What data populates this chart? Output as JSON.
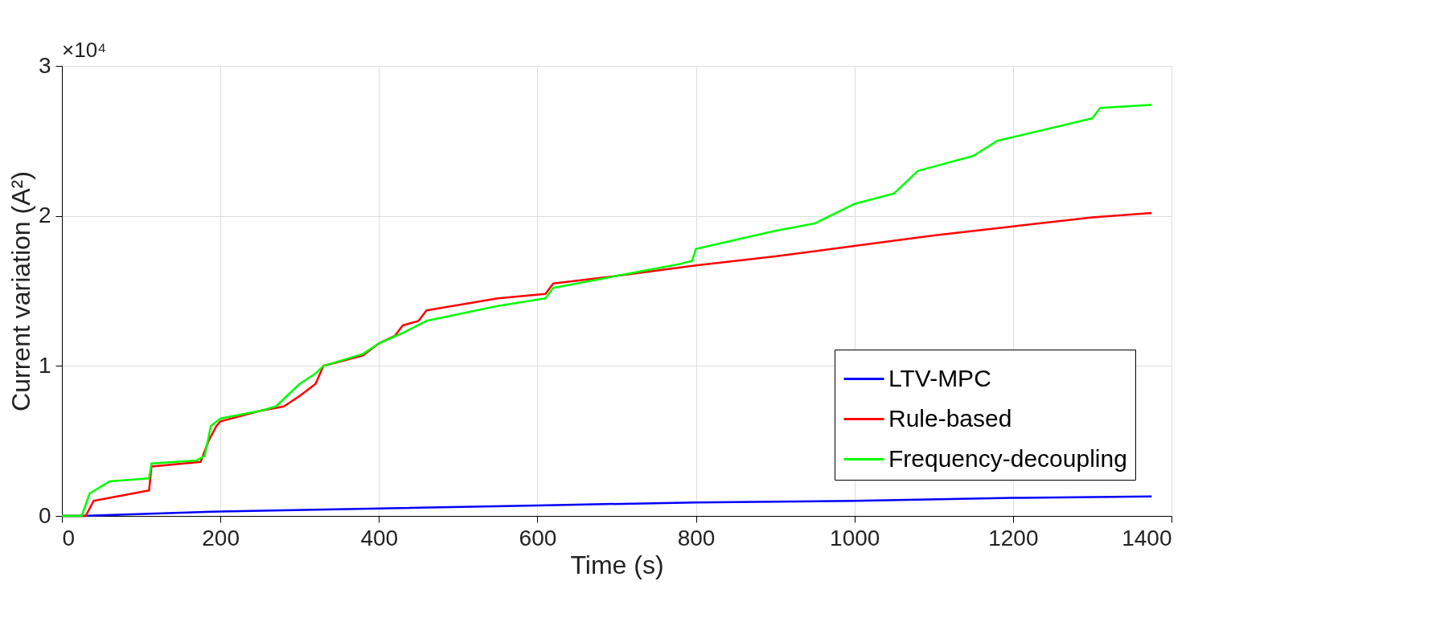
{
  "chart_data": {
    "type": "line",
    "xlabel": "Time (s)",
    "ylabel": "Current variation (A²)",
    "annotations": [
      "×10⁴"
    ],
    "xlim": [
      0,
      1400
    ],
    "xticks": [
      0,
      200,
      400,
      600,
      800,
      1000,
      1200,
      1400
    ],
    "ylim": [
      0,
      3
    ],
    "yticks": [
      0,
      1,
      2,
      3
    ],
    "grid": true,
    "legend": "bottom right",
    "line_style": "solid",
    "series": [
      {
        "name": "LTV-MPC",
        "color": "#0000ff",
        "x": [
          0,
          25,
          200,
          400,
          600,
          800,
          1000,
          1200,
          1375
        ],
        "values": [
          0,
          0,
          0.03,
          0.05,
          0.07,
          0.09,
          0.1,
          0.12,
          0.13
        ]
      },
      {
        "name": "Rule-based",
        "color": "#ff0000",
        "x": [
          0,
          30,
          40,
          110,
          113,
          175,
          185,
          195,
          200,
          250,
          280,
          300,
          320,
          330,
          380,
          400,
          420,
          430,
          450,
          460,
          550,
          610,
          620,
          700,
          800,
          900,
          1000,
          1100,
          1200,
          1300,
          1375
        ],
        "values": [
          0,
          0,
          0.1,
          0.17,
          0.33,
          0.36,
          0.5,
          0.6,
          0.63,
          0.7,
          0.73,
          0.8,
          0.88,
          1.0,
          1.07,
          1.15,
          1.2,
          1.27,
          1.3,
          1.37,
          1.45,
          1.48,
          1.55,
          1.6,
          1.67,
          1.73,
          1.8,
          1.87,
          1.93,
          1.99,
          2.02
        ]
      },
      {
        "name": "Frequency-decoupling",
        "color": "#00ff00",
        "x": [
          0,
          25,
          35,
          60,
          110,
          113,
          170,
          180,
          188,
          200,
          250,
          270,
          300,
          320,
          330,
          380,
          400,
          430,
          460,
          550,
          610,
          620,
          700,
          780,
          795,
          800,
          900,
          950,
          1000,
          1050,
          1080,
          1150,
          1180,
          1300,
          1310,
          1375
        ],
        "values": [
          0,
          0,
          0.15,
          0.23,
          0.25,
          0.35,
          0.37,
          0.4,
          0.6,
          0.65,
          0.7,
          0.73,
          0.88,
          0.95,
          1.0,
          1.08,
          1.15,
          1.22,
          1.3,
          1.4,
          1.45,
          1.52,
          1.6,
          1.68,
          1.7,
          1.78,
          1.9,
          1.95,
          2.08,
          2.15,
          2.3,
          2.4,
          2.5,
          2.65,
          2.72,
          2.74
        ]
      }
    ]
  }
}
